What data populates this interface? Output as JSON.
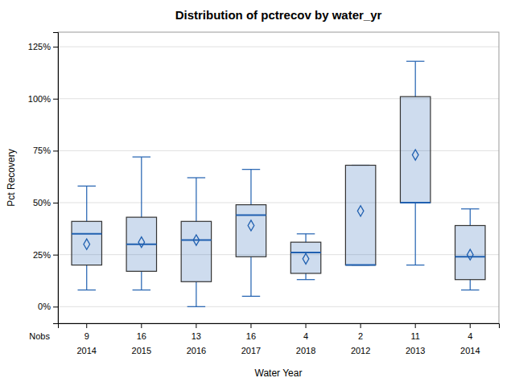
{
  "chart_data": {
    "type": "box",
    "title": "Distribution of pctrecov by water_yr",
    "xlabel": "Water Year",
    "ylabel": "Pct Recovery",
    "categories": [
      "2014",
      "2015",
      "2016",
      "2017",
      "2018",
      "2012",
      "2013",
      "2014"
    ],
    "nobs_label": "Nobs",
    "nobs": [
      9,
      16,
      13,
      16,
      4,
      2,
      11,
      4
    ],
    "boxes": [
      {
        "whislo": 8,
        "q1": 20,
        "med": 35,
        "q3": 41,
        "whishi": 58,
        "mean": 30
      },
      {
        "whislo": 8,
        "q1": 17,
        "med": 30,
        "q3": 43,
        "whishi": 72,
        "mean": 31
      },
      {
        "whislo": 0,
        "q1": 12,
        "med": 32,
        "q3": 41,
        "whishi": 62,
        "mean": 32
      },
      {
        "whislo": 5,
        "q1": 24,
        "med": 44,
        "q3": 49,
        "whishi": 66,
        "mean": 39
      },
      {
        "whislo": 13,
        "q1": 16,
        "med": 26,
        "q3": 31,
        "whishi": 35,
        "mean": 23
      },
      {
        "whislo": 20,
        "q1": 20,
        "med": 20,
        "q3": 68,
        "whishi": 68,
        "mean": 46
      },
      {
        "whislo": 20,
        "q1": 50,
        "med": 50,
        "q3": 101,
        "whishi": 118,
        "mean": 73
      },
      {
        "whislo": 8,
        "q1": 13,
        "med": 24,
        "q3": 39,
        "whishi": 47,
        "mean": 25
      }
    ],
    "color": "#2060b0",
    "marker": "diamond",
    "ylim": [
      -8,
      132
    ],
    "yticks": [
      {
        "value": 0,
        "label": "0%"
      },
      {
        "value": 25,
        "label": "25%"
      },
      {
        "value": 50,
        "label": "50%"
      },
      {
        "value": 75,
        "label": "75%"
      },
      {
        "value": 100,
        "label": "100%"
      },
      {
        "value": 125,
        "label": "125%"
      }
    ],
    "grid": true
  }
}
